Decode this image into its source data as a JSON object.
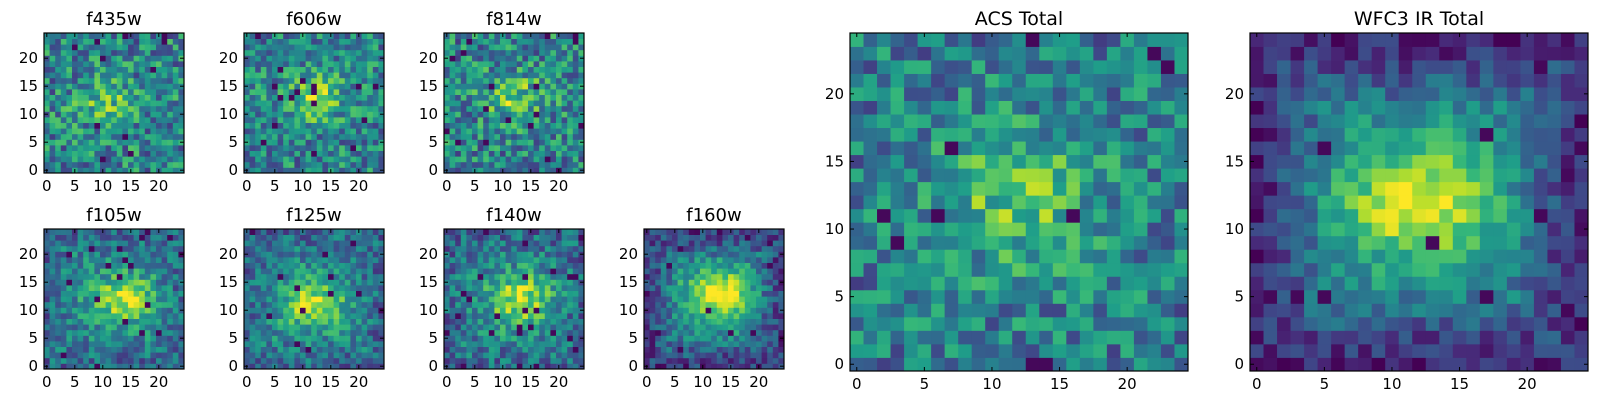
{
  "chart_data": [
    {
      "type": "heatmap",
      "title": "f435w",
      "grid_size": 25,
      "xticks": [
        0,
        5,
        10,
        15,
        20
      ],
      "yticks": [
        0,
        5,
        10,
        15,
        20
      ],
      "xlim": [
        -0.5,
        24.5
      ],
      "ylim": [
        -0.5,
        24.5
      ],
      "colormap": "viridis",
      "center": [
        11,
        12
      ],
      "signal": 0.25,
      "noise": 0.35,
      "edge_dark": 0.0,
      "seed": 11
    },
    {
      "type": "heatmap",
      "title": "f606w",
      "grid_size": 25,
      "xticks": [
        0,
        5,
        10,
        15,
        20
      ],
      "yticks": [
        0,
        5,
        10,
        15,
        20
      ],
      "xlim": [
        -0.5,
        24.5
      ],
      "ylim": [
        -0.5,
        24.5
      ],
      "colormap": "viridis",
      "center": [
        12,
        13
      ],
      "signal": 0.35,
      "noise": 0.33,
      "edge_dark": 0.0,
      "seed": 23
    },
    {
      "type": "heatmap",
      "title": "f814w",
      "grid_size": 25,
      "xticks": [
        0,
        5,
        10,
        15,
        20
      ],
      "yticks": [
        0,
        5,
        10,
        15,
        20
      ],
      "xlim": [
        -0.5,
        24.5
      ],
      "ylim": [
        -0.5,
        24.5
      ],
      "colormap": "viridis",
      "center": [
        12,
        13
      ],
      "signal": 0.3,
      "noise": 0.35,
      "edge_dark": 0.0,
      "seed": 37
    },
    {
      "type": "heatmap",
      "title": "f105w",
      "grid_size": 25,
      "xticks": [
        0,
        5,
        10,
        15,
        20
      ],
      "yticks": [
        0,
        5,
        10,
        15,
        20
      ],
      "xlim": [
        -0.5,
        24.5
      ],
      "ylim": [
        -0.5,
        24.5
      ],
      "colormap": "viridis",
      "center": [
        14,
        12
      ],
      "signal": 0.45,
      "noise": 0.25,
      "edge_dark": 0.15,
      "seed": 41
    },
    {
      "type": "heatmap",
      "title": "f125w",
      "grid_size": 25,
      "xticks": [
        0,
        5,
        10,
        15,
        20
      ],
      "yticks": [
        0,
        5,
        10,
        15,
        20
      ],
      "xlim": [
        -0.5,
        24.5
      ],
      "ylim": [
        -0.5,
        24.5
      ],
      "colormap": "viridis",
      "center": [
        12,
        11
      ],
      "signal": 0.45,
      "noise": 0.25,
      "edge_dark": 0.15,
      "seed": 53
    },
    {
      "type": "heatmap",
      "title": "f140w",
      "grid_size": 25,
      "xticks": [
        0,
        5,
        10,
        15,
        20
      ],
      "yticks": [
        0,
        5,
        10,
        15,
        20
      ],
      "xlim": [
        -0.5,
        24.5
      ],
      "ylim": [
        -0.5,
        24.5
      ],
      "colormap": "viridis",
      "center": [
        13,
        12
      ],
      "signal": 0.45,
      "noise": 0.27,
      "edge_dark": 0.15,
      "seed": 67
    },
    {
      "type": "heatmap",
      "title": "f160w",
      "grid_size": 25,
      "xticks": [
        0,
        5,
        10,
        15,
        20
      ],
      "yticks": [
        0,
        5,
        10,
        15,
        20
      ],
      "xlim": [
        -0.5,
        24.5
      ],
      "ylim": [
        -0.5,
        24.5
      ],
      "colormap": "viridis",
      "center": [
        13,
        13
      ],
      "signal": 0.6,
      "noise": 0.22,
      "edge_dark": 0.35,
      "seed": 79
    },
    {
      "type": "heatmap",
      "title": "ACS Total",
      "grid_size": 25,
      "xticks": [
        0,
        5,
        10,
        15,
        20
      ],
      "yticks": [
        0,
        5,
        10,
        15,
        20
      ],
      "xlim": [
        -0.5,
        24.5
      ],
      "ylim": [
        -0.5,
        24.5
      ],
      "colormap": "viridis",
      "center": [
        12,
        12
      ],
      "signal": 0.3,
      "noise": 0.3,
      "edge_dark": 0.05,
      "seed": 97
    },
    {
      "type": "heatmap",
      "title": "WFC3 IR Total",
      "grid_size": 25,
      "xticks": [
        0,
        5,
        10,
        15,
        20
      ],
      "yticks": [
        0,
        5,
        10,
        15,
        20
      ],
      "xlim": [
        -0.5,
        24.5
      ],
      "ylim": [
        -0.5,
        24.5
      ],
      "colormap": "viridis",
      "center": [
        12,
        12
      ],
      "signal": 0.55,
      "noise": 0.18,
      "edge_dark": 0.45,
      "seed": 103
    }
  ]
}
